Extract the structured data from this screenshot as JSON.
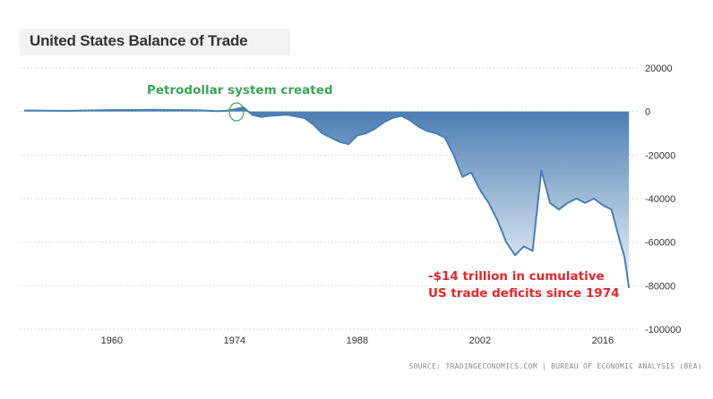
{
  "title": "United States Balance of Trade",
  "source": "SOURCE: TRADINGECONOMICS.COM | BUREAU OF ECONOMIC ANALYSIS (BEA)",
  "annotations": {
    "petrodollar": "Petrodollar system created",
    "deficit_line1": "-$14 trillion in cumulative",
    "deficit_line2": "US trade deficits since 1974"
  },
  "colors": {
    "line": "#4a7fb5",
    "area_top": "#3d74ad",
    "area_bottom": "#eef4fa",
    "annotation_green": "#3aa655",
    "annotation_red": "#e8262a",
    "grid": "#d9d9d9"
  },
  "chart_data": {
    "type": "area",
    "title": "United States Balance of Trade",
    "xlabel": "",
    "ylabel": "",
    "x_ticks": [
      1960,
      1974,
      1988,
      2002,
      2016
    ],
    "y_ticks": [
      20000,
      0,
      -20000,
      -40000,
      -60000,
      -80000,
      -100000
    ],
    "ylim": [
      -100000,
      20000
    ],
    "xlim": [
      1950,
      2020
    ],
    "grid": "horizontal",
    "y_axis_side": "right",
    "series": [
      {
        "x": [
          1950,
          1955,
          1960,
          1965,
          1970,
          1972,
          1973,
          1974,
          1975,
          1976,
          1977,
          1978,
          1980,
          1982,
          1983,
          1984,
          1985,
          1986,
          1987,
          1988,
          1989,
          1990,
          1991,
          1992,
          1993,
          1994,
          1995,
          1996,
          1997,
          1998,
          1999,
          2000,
          2001,
          2002,
          2003,
          2004,
          2005,
          2006,
          2007,
          2008,
          2009,
          2010,
          2011,
          2012,
          2013,
          2014,
          2015,
          2016,
          2017,
          2018,
          2018.5,
          2019
        ],
        "values": [
          500,
          300,
          700,
          800,
          600,
          200,
          300,
          1000,
          2000,
          -1500,
          -2500,
          -2000,
          -1500,
          -3000,
          -6000,
          -10000,
          -12000,
          -14000,
          -15000,
          -11000,
          -10000,
          -8000,
          -5000,
          -3000,
          -2000,
          -4000,
          -7000,
          -9000,
          -10000,
          -12000,
          -20000,
          -30000,
          -28000,
          -36000,
          -42000,
          -50000,
          -60000,
          -66000,
          -62000,
          -64000,
          -27000,
          -42000,
          -45000,
          -42000,
          -40000,
          -42000,
          -40000,
          -43000,
          -45000,
          -60000,
          -67000,
          -81000
        ]
      }
    ]
  }
}
